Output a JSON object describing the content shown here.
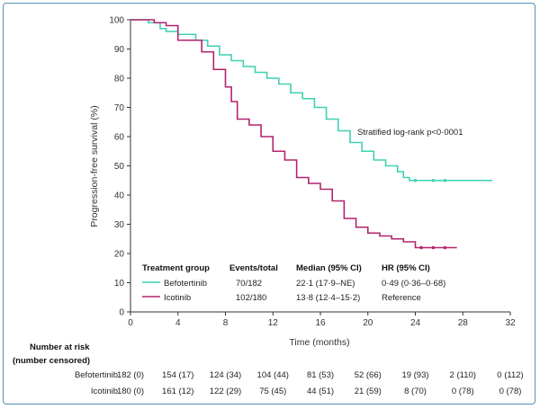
{
  "chart_data": {
    "type": "line",
    "title": "",
    "xlabel": "Time (months)",
    "ylabel": "Progression-free survival (%)",
    "xlim": [
      0,
      32
    ],
    "ylim": [
      0,
      100
    ],
    "x_ticks": [
      0,
      4,
      8,
      12,
      16,
      20,
      24,
      28,
      32
    ],
    "y_ticks": [
      0,
      10,
      20,
      30,
      40,
      50,
      60,
      70,
      80,
      90,
      100
    ],
    "annotation": "Stratified log-rank p<0·0001",
    "series": [
      {
        "name": "Befotertinib",
        "color": "#3fd1b4",
        "steps": [
          [
            0,
            100
          ],
          [
            1,
            100
          ],
          [
            1.5,
            99
          ],
          [
            2.5,
            97
          ],
          [
            3,
            96
          ],
          [
            4,
            95
          ],
          [
            5.5,
            93
          ],
          [
            6.5,
            91
          ],
          [
            7.5,
            88
          ],
          [
            8.5,
            86
          ],
          [
            9.5,
            84
          ],
          [
            10.5,
            82
          ],
          [
            11.5,
            80
          ],
          [
            12.5,
            78
          ],
          [
            13.5,
            75
          ],
          [
            14.5,
            73
          ],
          [
            15.5,
            70
          ],
          [
            16.5,
            66
          ],
          [
            17.5,
            62
          ],
          [
            18.5,
            58
          ],
          [
            19.5,
            55
          ],
          [
            20.5,
            52
          ],
          [
            21.5,
            50
          ],
          [
            22.5,
            48
          ],
          [
            23,
            46
          ],
          [
            23.5,
            45
          ],
          [
            30.5,
            45
          ]
        ],
        "censor_x": [
          24,
          25.5,
          26.5
        ]
      },
      {
        "name": "Icotinib",
        "color": "#b3236e",
        "steps": [
          [
            0,
            100
          ],
          [
            1,
            100
          ],
          [
            2,
            99
          ],
          [
            3,
            98
          ],
          [
            4,
            93
          ],
          [
            6,
            89
          ],
          [
            7,
            83
          ],
          [
            8,
            77
          ],
          [
            8.5,
            72
          ],
          [
            9,
            66
          ],
          [
            10,
            64
          ],
          [
            11,
            60
          ],
          [
            12,
            55
          ],
          [
            13,
            52
          ],
          [
            14,
            46
          ],
          [
            15,
            44
          ],
          [
            16,
            42
          ],
          [
            17,
            38
          ],
          [
            18,
            32
          ],
          [
            19,
            29
          ],
          [
            20,
            27
          ],
          [
            21,
            26
          ],
          [
            22,
            25
          ],
          [
            23,
            24
          ],
          [
            24,
            22
          ],
          [
            27.5,
            22
          ]
        ],
        "censor_x": [
          24.5,
          25.5,
          26.5
        ]
      }
    ],
    "legend": {
      "headers": [
        "Treatment group",
        "Events/total",
        "Median (95% CI)",
        "HR (95% CI)"
      ],
      "rows": [
        {
          "group": "Befotertinib",
          "events": "70/182",
          "median": "22·1 (17·9–NE)",
          "hr": "0·49 (0·36–0·68)"
        },
        {
          "group": "Icotinib",
          "events": "102/180",
          "median": "13·8 (12·4–15·2)",
          "hr": "Reference"
        }
      ]
    }
  },
  "risk_table": {
    "title_line1": "Number at risk",
    "title_line2": "(number censored)",
    "rows": [
      {
        "name": "Befotertinib",
        "values": [
          "182 (0)",
          "154 (17)",
          "124 (34)",
          "104 (44)",
          "81 (53)",
          "52 (66)",
          "19 (93)",
          "2 (110)",
          "0 (112)"
        ]
      },
      {
        "name": "Icotinib",
        "values": [
          "180 (0)",
          "161 (12)",
          "122 (29)",
          "75 (45)",
          "44 (51)",
          "21 (59)",
          "8 (70)",
          "0 (78)",
          "0 (78)"
        ]
      }
    ]
  }
}
